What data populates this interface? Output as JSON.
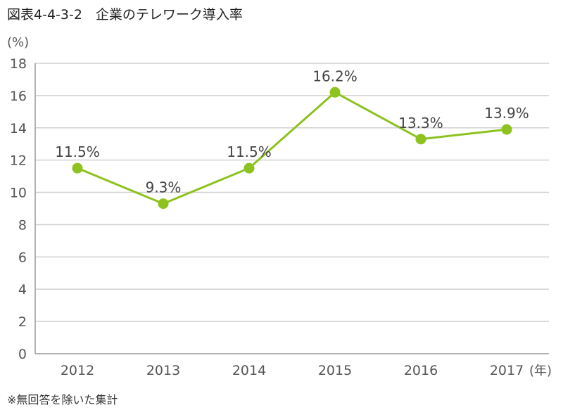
{
  "figure": {
    "title": "図表4-4-3-2　企業のテレワーク導入率",
    "footnote": "※無回答を除いた集計"
  },
  "chart_data": {
    "type": "line",
    "title": "企業のテレワーク導入率",
    "x": [
      "2012",
      "2013",
      "2014",
      "2015",
      "2016",
      "2017"
    ],
    "series": [
      {
        "values": [
          11.5,
          9.3,
          11.5,
          16.2,
          13.3,
          13.9
        ],
        "labels": [
          "11.5%",
          "9.3%",
          "11.5%",
          "16.2%",
          "13.3%",
          "13.9%"
        ],
        "color": "#8dc21f"
      }
    ],
    "ylabel": "(%)",
    "xlabel": "(年)",
    "ylim": [
      0,
      18
    ],
    "yticks": [
      0,
      2,
      4,
      6,
      8,
      10,
      12,
      14,
      16,
      18
    ],
    "grid": true,
    "legend": "none",
    "colors": {
      "line": "#8dc21f",
      "grid": "#d0d0d0",
      "axis": "#999999"
    }
  }
}
